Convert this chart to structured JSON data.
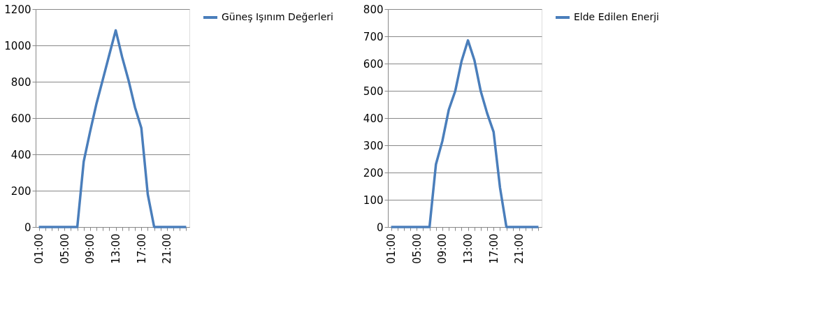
{
  "chart_data": [
    {
      "type": "line",
      "categories": [
        "01:00",
        null,
        null,
        null,
        "05:00",
        null,
        null,
        null,
        "09:00",
        null,
        null,
        null,
        "13:00",
        null,
        null,
        null,
        "17:00",
        null,
        null,
        null,
        "21:00",
        null,
        null,
        null
      ],
      "series": [
        {
          "name": "Güneş Işınım Değerleri",
          "color": "#4a7ebb",
          "values": [
            0,
            0,
            0,
            0,
            0,
            0,
            0,
            360,
            525,
            680,
            814,
            949,
            1083,
            936,
            808,
            660,
            545,
            180,
            0,
            0,
            0,
            0,
            0,
            0
          ]
        }
      ],
      "ylim": [
        0,
        1200
      ],
      "yticks": [
        0,
        200,
        400,
        600,
        800,
        1000,
        1200
      ],
      "grid": "y",
      "legend": "right",
      "marker": "none",
      "line_style": "solid"
    },
    {
      "type": "line",
      "categories": [
        "01:00",
        null,
        null,
        null,
        "05:00",
        null,
        null,
        null,
        "09:00",
        null,
        null,
        null,
        "13:00",
        null,
        null,
        null,
        "17:00",
        null,
        null,
        null,
        "21:00",
        null,
        null,
        null
      ],
      "series": [
        {
          "name": "Elde Edilen Enerji",
          "color": "#4a7ebb",
          "values": [
            0,
            0,
            0,
            0,
            0,
            0,
            0,
            230,
            315,
            430,
            498,
            609,
            685,
            613,
            498,
            417,
            349,
            145,
            0,
            0,
            0,
            0,
            0,
            0
          ]
        }
      ],
      "ylim": [
        0,
        800
      ],
      "yticks": [
        0,
        100,
        200,
        300,
        400,
        500,
        600,
        700,
        800
      ],
      "grid": "y",
      "legend": "right",
      "marker": "none",
      "line_style": "solid"
    }
  ]
}
